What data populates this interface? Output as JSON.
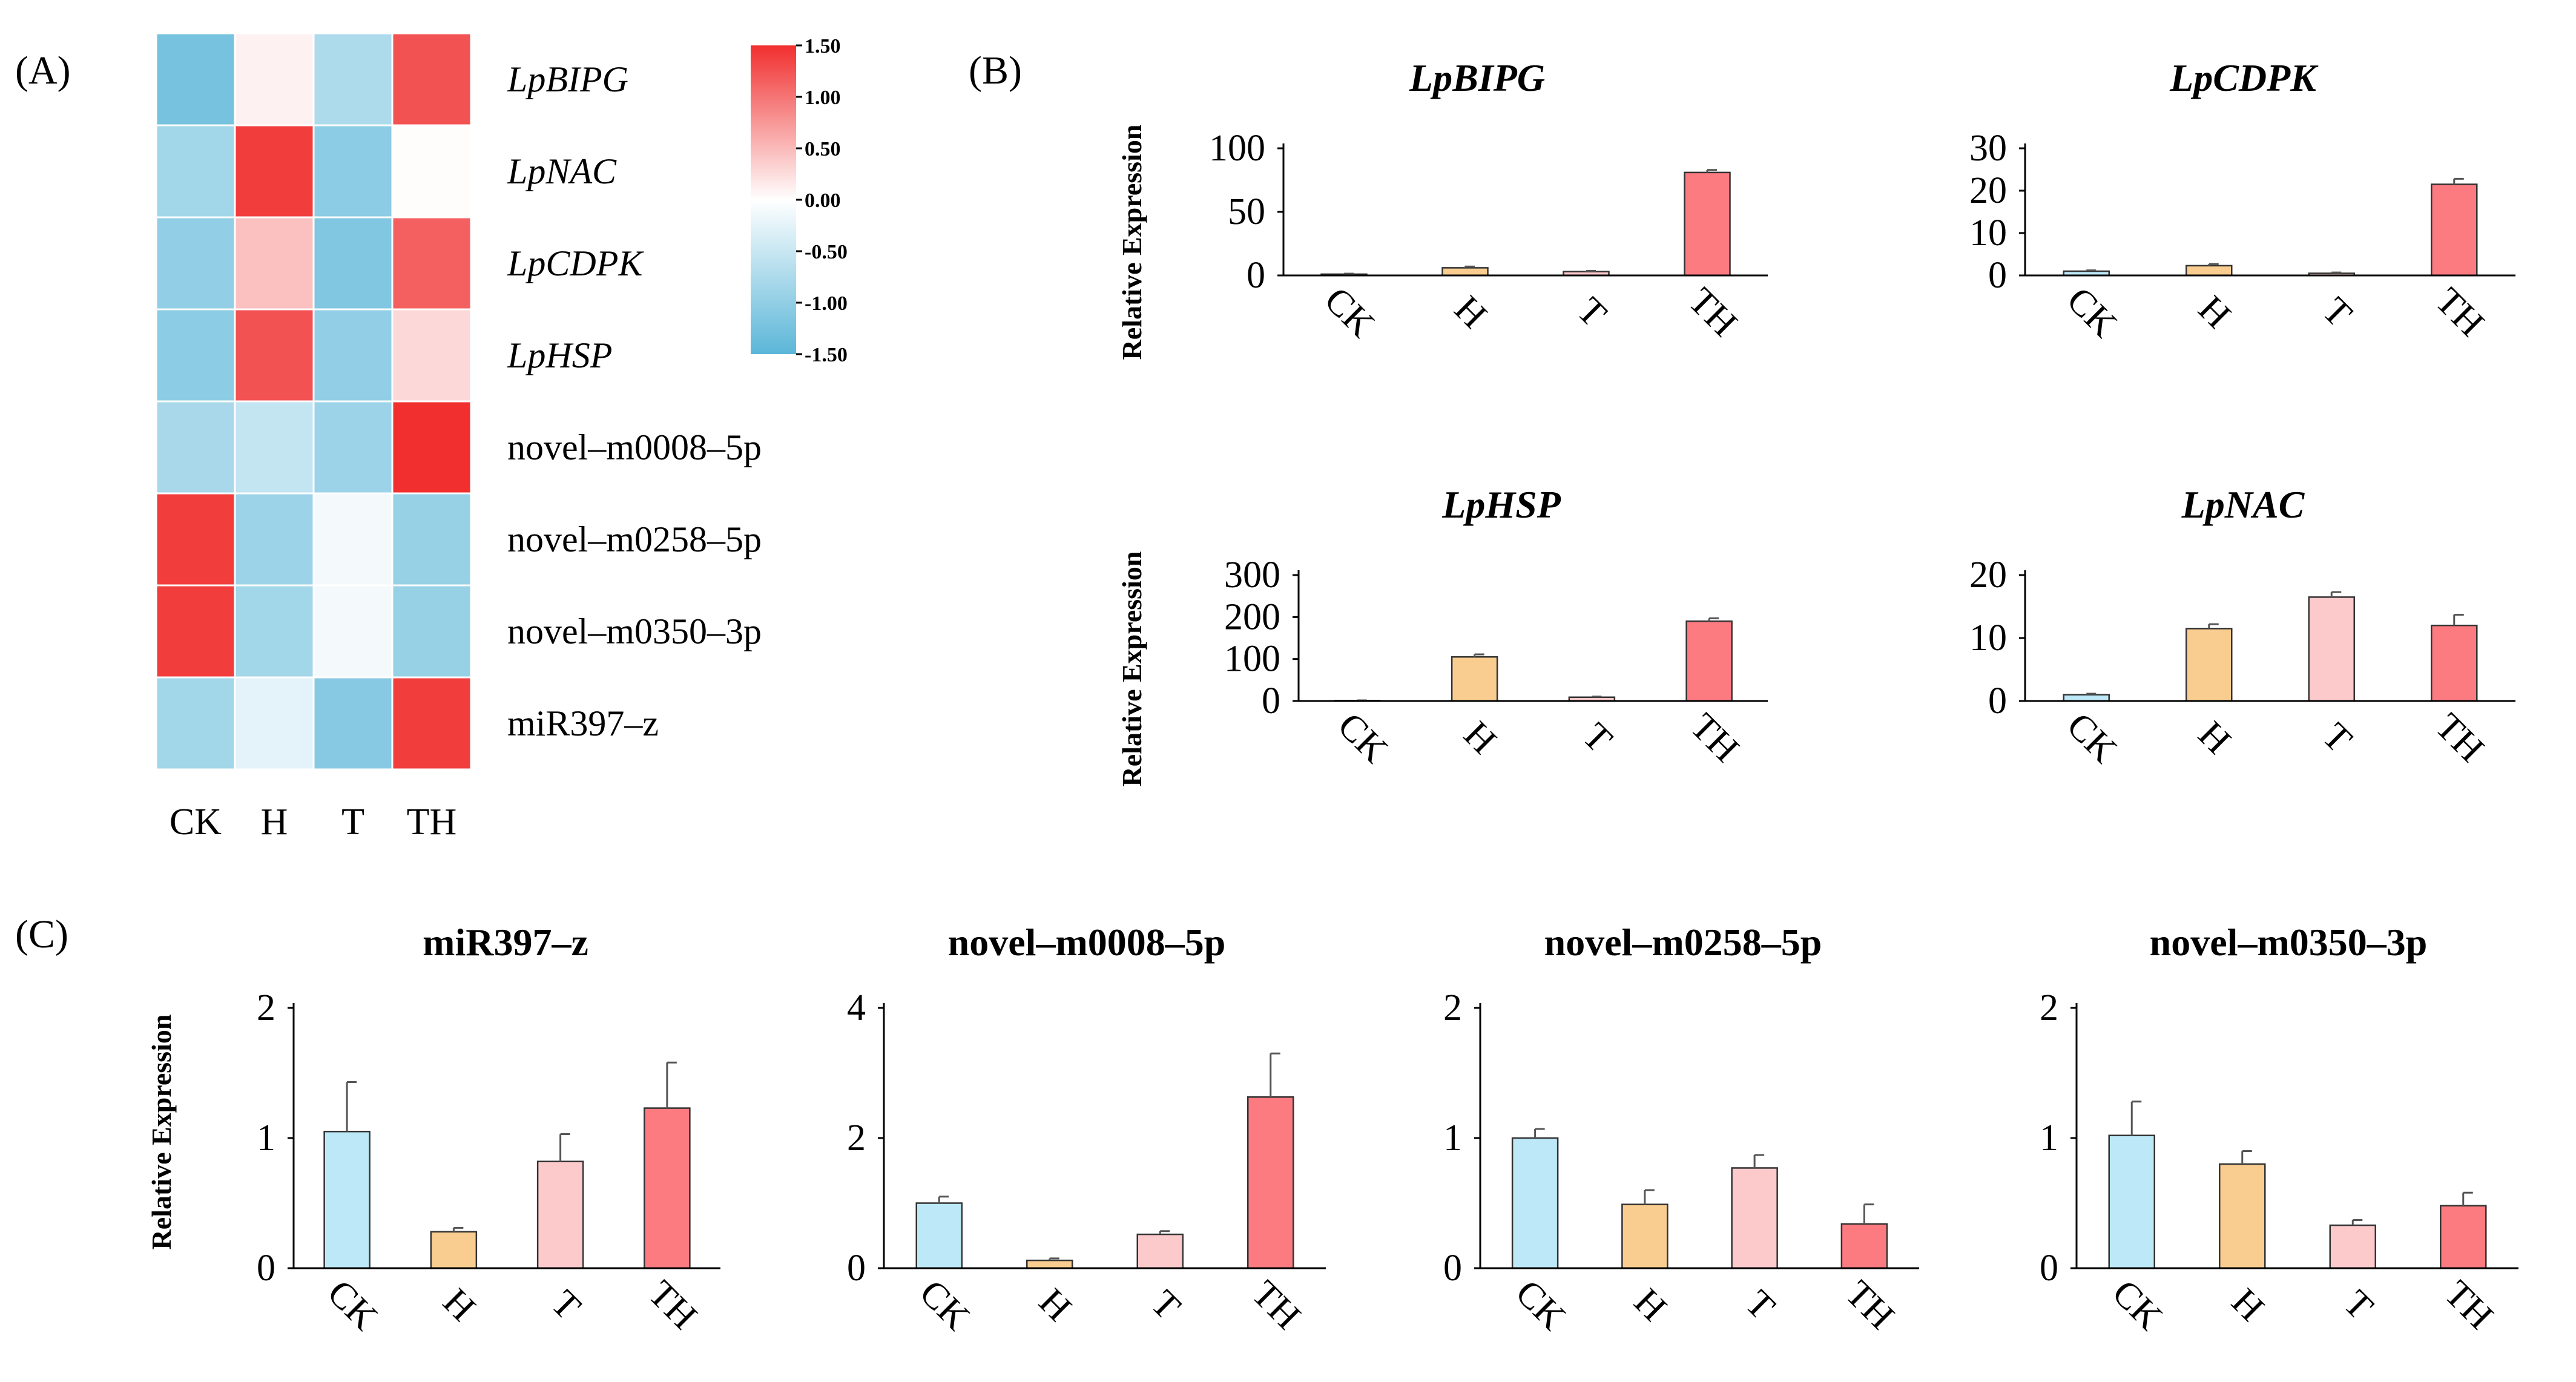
{
  "panels": {
    "a": "(A)",
    "b": "(B)",
    "c": "(C)"
  },
  "heatmap": {
    "rows": [
      "LpBIPG",
      "LpNAC",
      "LpCDPK",
      "LpHSP",
      "novel–m0008–5p",
      "novel–m0258–5p",
      "novel–m0350–3p",
      "miR397–z"
    ],
    "italic_rows": [
      true,
      true,
      true,
      true,
      false,
      false,
      false,
      false
    ],
    "columns": [
      "CK",
      "H",
      "T",
      "TH"
    ],
    "values": [
      [
        -1.25,
        0.1,
        -0.75,
        1.25
      ],
      [
        -0.85,
        1.4,
        -1.05,
        0.02
      ],
      [
        -1.0,
        0.45,
        -1.15,
        1.15
      ],
      [
        -1.05,
        1.25,
        -1.0,
        0.28
      ],
      [
        -0.8,
        -0.55,
        -0.9,
        1.5
      ],
      [
        1.4,
        -0.9,
        -0.1,
        -0.95
      ],
      [
        1.4,
        -0.85,
        -0.1,
        -0.95
      ],
      [
        -0.85,
        -0.25,
        -1.1,
        1.4
      ]
    ],
    "scale": {
      "min": -1.5,
      "max": 1.5,
      "ticks": [
        "1.50",
        "1.00",
        "0.50",
        "0.00",
        "-0.50",
        "-1.00",
        "-1.50"
      ],
      "colors": {
        "low": "#5bb6d8",
        "mid": "#ffffff",
        "high": "#f12f2f"
      }
    }
  },
  "bar_colors": [
    "#bde8f8",
    "#f9cd90",
    "#fdcacc",
    "#fc7b81"
  ],
  "ylabel": "Relative Expression",
  "chart_data": [
    {
      "type": "heatmap",
      "rows": [
        "LpBIPG",
        "LpNAC",
        "LpCDPK",
        "LpHSP",
        "novel–m0008–5p",
        "novel–m0258–5p",
        "novel–m0350–3p",
        "miR397–z"
      ],
      "columns": [
        "CK",
        "H",
        "T",
        "TH"
      ],
      "values": [
        [
          -1.25,
          0.1,
          -0.75,
          1.25
        ],
        [
          -0.85,
          1.4,
          -1.05,
          0.02
        ],
        [
          -1.0,
          0.45,
          -1.15,
          1.15
        ],
        [
          -1.05,
          1.25,
          -1.0,
          0.28
        ],
        [
          -0.8,
          -0.55,
          -0.9,
          1.5
        ],
        [
          1.4,
          -0.9,
          -0.1,
          -0.95
        ],
        [
          1.4,
          -0.85,
          -0.1,
          -0.95
        ],
        [
          -0.85,
          -0.25,
          -1.1,
          1.4
        ]
      ],
      "color_range": [
        -1.5,
        1.5
      ]
    },
    {
      "type": "bar",
      "title": "LpBIPG",
      "italic": true,
      "ylabel": "Relative Expression",
      "categories": [
        "CK",
        "H",
        "T",
        "TH"
      ],
      "values": [
        1,
        6,
        3,
        81
      ],
      "errors": [
        0.4,
        1,
        0.6,
        2
      ],
      "ylim": [
        0,
        100
      ],
      "yticks": [
        0,
        50,
        100
      ]
    },
    {
      "type": "bar",
      "title": "LpCDPK",
      "italic": true,
      "ylabel": "",
      "categories": [
        "CK",
        "H",
        "T",
        "TH"
      ],
      "values": [
        1,
        2.3,
        0.5,
        21.5
      ],
      "errors": [
        0.2,
        0.4,
        0.2,
        1.3
      ],
      "ylim": [
        0,
        30
      ],
      "yticks": [
        0,
        10,
        20,
        30
      ]
    },
    {
      "type": "bar",
      "title": "LpHSP",
      "italic": true,
      "ylabel": "Relative Expression",
      "categories": [
        "CK",
        "H",
        "T",
        "TH"
      ],
      "values": [
        1,
        105,
        9,
        190
      ],
      "errors": [
        0.5,
        6,
        1.5,
        7
      ],
      "ylim": [
        0,
        300
      ],
      "yticks": [
        0,
        100,
        200,
        300
      ]
    },
    {
      "type": "bar",
      "title": "LpNAC",
      "italic": true,
      "ylabel": "",
      "categories": [
        "CK",
        "H",
        "T",
        "TH"
      ],
      "values": [
        1,
        11.5,
        16.5,
        12
      ],
      "errors": [
        0.15,
        0.7,
        0.8,
        1.7
      ],
      "ylim": [
        0,
        20
      ],
      "yticks": [
        0,
        10,
        20
      ]
    },
    {
      "type": "bar",
      "title": "miR397–z",
      "italic": false,
      "ylabel": "Relative Expression",
      "categories": [
        "CK",
        "H",
        "T",
        "TH"
      ],
      "values": [
        1.05,
        0.28,
        0.82,
        1.23
      ],
      "errors": [
        0.38,
        0.03,
        0.21,
        0.35
      ],
      "ylim": [
        0,
        2
      ],
      "yticks": [
        0,
        1,
        2
      ]
    },
    {
      "type": "bar",
      "title": "novel–m0008–5p",
      "italic": false,
      "ylabel": "",
      "categories": [
        "CK",
        "H",
        "T",
        "TH"
      ],
      "values": [
        1,
        0.12,
        0.52,
        2.63
      ],
      "errors": [
        0.1,
        0.03,
        0.05,
        0.67
      ],
      "ylim": [
        0,
        4
      ],
      "yticks": [
        0,
        2,
        4
      ]
    },
    {
      "type": "bar",
      "title": "novel–m0258–5p",
      "italic": false,
      "ylabel": "",
      "categories": [
        "CK",
        "H",
        "T",
        "TH"
      ],
      "values": [
        1,
        0.49,
        0.77,
        0.34
      ],
      "errors": [
        0.07,
        0.11,
        0.1,
        0.15
      ],
      "ylim": [
        0,
        2
      ],
      "yticks": [
        0,
        1,
        2
      ]
    },
    {
      "type": "bar",
      "title": "novel–m0350–3p",
      "italic": false,
      "ylabel": "",
      "categories": [
        "CK",
        "H",
        "T",
        "TH"
      ],
      "values": [
        1.02,
        0.8,
        0.33,
        0.48
      ],
      "errors": [
        0.26,
        0.1,
        0.04,
        0.1
      ],
      "ylim": [
        0,
        2
      ],
      "yticks": [
        0,
        1,
        2
      ]
    }
  ]
}
